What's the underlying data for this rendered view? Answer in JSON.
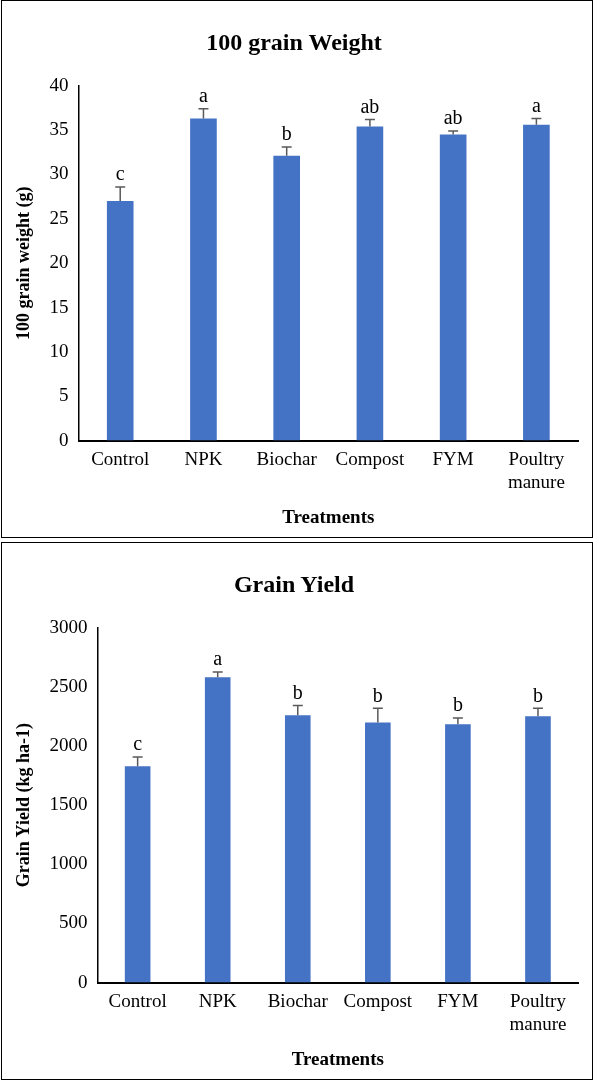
{
  "chart_data": [
    {
      "type": "bar",
      "title": "100 grain Weight",
      "xlabel": "Treatments",
      "ylabel": "100 grain weight (g)",
      "categories": [
        "Control",
        "NPK",
        "Biochar",
        "Compost",
        "FYM",
        "Poultry manure"
      ],
      "color": "#4472c4",
      "values": [
        27.0,
        36.3,
        32.1,
        35.4,
        34.5,
        35.6
      ],
      "errors": [
        [
          27.0,
          28.6
        ],
        [
          36.3,
          37.4
        ],
        [
          32.1,
          33.1
        ],
        [
          35.4,
          36.2
        ],
        [
          34.5,
          34.9
        ],
        [
          35.6,
          36.3
        ]
      ],
      "ylim": [
        0,
        40
      ],
      "yticks": [
        0,
        5,
        10,
        15,
        20,
        25,
        30,
        35,
        40
      ],
      "grid": false,
      "legend": false,
      "annotations": [
        {
          "text": "c",
          "x": "Control",
          "y": 28.6
        },
        {
          "text": "a",
          "x": "NPK",
          "y": 37.4
        },
        {
          "text": "b",
          "x": "Biochar",
          "y": 33.1
        },
        {
          "text": "ab",
          "x": "Compost",
          "y": 36.2
        },
        {
          "text": "ab",
          "x": "FYM",
          "y": 34.9
        },
        {
          "text": "a",
          "x": "Poultry manure",
          "y": 36.3
        }
      ]
    },
    {
      "type": "bar",
      "title": "Grain Yield",
      "xlabel": "Treatments",
      "ylabel": "Grain Yield (kg ha-1)",
      "categories": [
        "Control",
        "NPK",
        "Biochar",
        "Compost",
        "FYM",
        "Poultry manure"
      ],
      "color": "#4472c4",
      "values": [
        1829,
        2581,
        2260,
        2199,
        2185,
        2252
      ],
      "errors": [
        [
          1829,
          1908
        ],
        [
          2581,
          2627
        ],
        [
          2260,
          2342
        ],
        [
          2199,
          2319
        ],
        [
          2185,
          2237
        ],
        [
          2252,
          2319
        ]
      ],
      "ylim": [
        0,
        3000
      ],
      "yticks": [
        0,
        500,
        1000,
        1500,
        2000,
        2500,
        3000
      ],
      "grid": false,
      "legend": false,
      "annotations": [
        {
          "text": "c",
          "x": "Control",
          "y": 1908
        },
        {
          "text": "a",
          "x": "NPK",
          "y": 2627
        },
        {
          "text": "b",
          "x": "Biochar",
          "y": 2342
        },
        {
          "text": "b",
          "x": "Compost",
          "y": 2319
        },
        {
          "text": "b",
          "x": "FYM",
          "y": 2237
        },
        {
          "text": "b",
          "x": "Poultry manure",
          "y": 2319
        }
      ]
    }
  ]
}
